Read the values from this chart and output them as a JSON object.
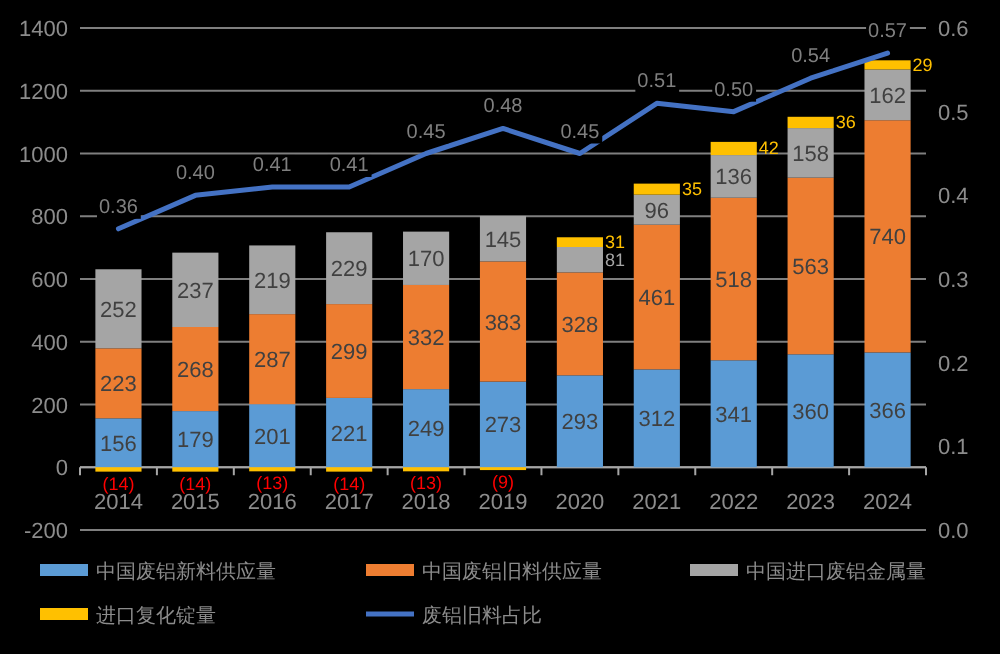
{
  "chart_data": {
    "type": "bar",
    "stacked": true,
    "categories": [
      "2014",
      "2015",
      "2016",
      "2017",
      "2018",
      "2019",
      "2020",
      "2021",
      "2022",
      "2023",
      "2024"
    ],
    "series": [
      {
        "name": "中国废铝新料供应量",
        "color": "#5b9bd5",
        "values": [
          156,
          179,
          201,
          221,
          249,
          273,
          293,
          312,
          341,
          360,
          366
        ]
      },
      {
        "name": "中国废铝旧料供应量",
        "color": "#ed7d31",
        "values": [
          223,
          268,
          287,
          299,
          332,
          383,
          328,
          461,
          518,
          563,
          740
        ]
      },
      {
        "name": "中国进口废铝金属量",
        "color": "#a5a5a5",
        "values": [
          252,
          237,
          219,
          229,
          170,
          145,
          81,
          96,
          136,
          158,
          162
        ]
      },
      {
        "name": "进口复化锭量",
        "color": "#ffc000",
        "values": [
          -14,
          -14,
          -13,
          -14,
          -13,
          -9,
          31,
          35,
          42,
          36,
          29
        ],
        "value_labels": [
          "(14)",
          "(14)",
          "(13)",
          "(14)",
          "(13)",
          "(9)",
          "31",
          "35",
          "42",
          "36",
          "29"
        ]
      },
      {
        "name": "废铝旧料占比",
        "type": "line",
        "axis": "y2",
        "color": "#4472c4",
        "values": [
          0.36,
          0.4,
          0.41,
          0.41,
          0.45,
          0.48,
          0.45,
          0.51,
          0.5,
          0.54,
          0.57
        ],
        "value_labels": [
          "0.36",
          "0.40",
          "0.41",
          "0.41",
          "0.45",
          "0.48",
          "0.45",
          "0.51",
          "0.50",
          "0.54",
          "0.57"
        ]
      }
    ],
    "ylim": [
      -200,
      1400
    ],
    "yticks": [
      -200,
      0,
      200,
      400,
      600,
      800,
      1000,
      1200,
      1400
    ],
    "y2lim": [
      0,
      0.6
    ],
    "y2ticks": [
      {
        "value": 0,
        "label": "0.0"
      },
      0.1,
      0.2,
      0.3,
      0.4,
      0.5,
      0.6
    ],
    "grid": "y",
    "legend": "bottom",
    "data_labels": true
  }
}
